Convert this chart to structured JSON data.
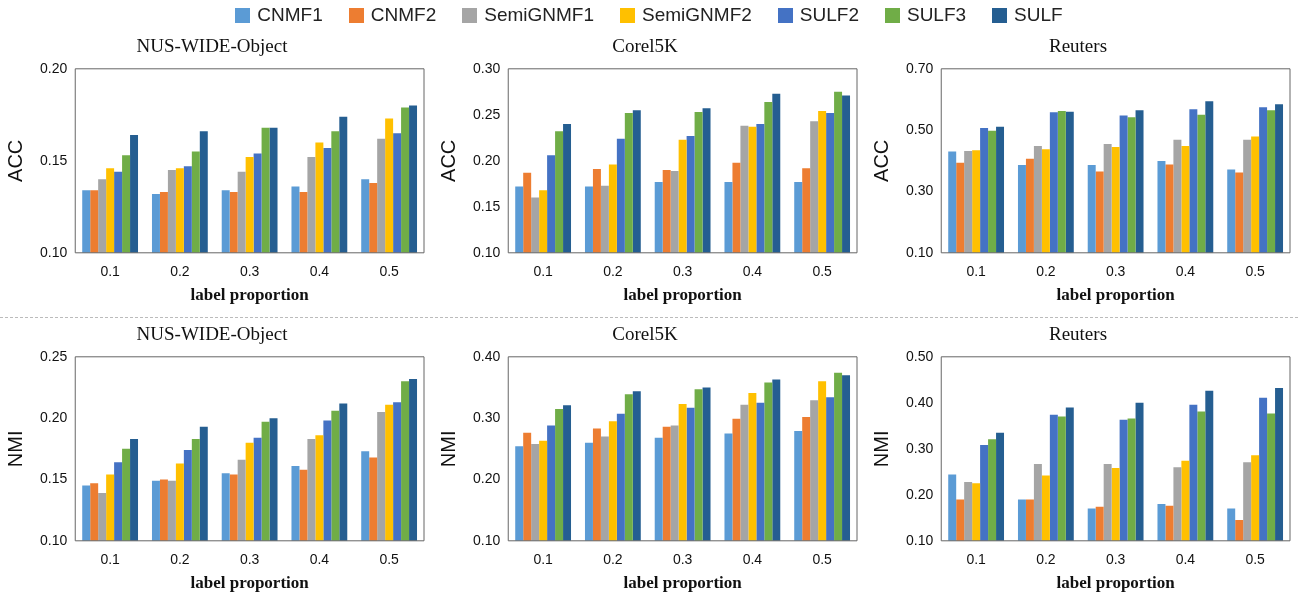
{
  "chart_data": [
    {
      "type": "bar",
      "title": "NUS-WIDE-Object",
      "xlabel": "label proportion",
      "ylabel": "ACC",
      "legend": "top",
      "categories": [
        "0.1",
        "0.2",
        "0.3",
        "0.4",
        "0.5"
      ],
      "ylim": [
        0.1,
        0.2
      ],
      "yticks": [
        {
          "value": 0.1,
          "label": "0.10"
        },
        {
          "value": 0.15,
          "label": "0.15"
        },
        {
          "value": 0.2,
          "label": "0.20"
        }
      ],
      "series": [
        {
          "name": "CNMF1",
          "color": "#5b9bd5",
          "values": [
            0.134,
            0.132,
            0.134,
            0.136,
            0.14
          ]
        },
        {
          "name": "CNMF2",
          "color": "#ed7d31",
          "values": [
            0.134,
            0.133,
            0.133,
            0.133,
            0.138
          ]
        },
        {
          "name": "SemiGNMF1",
          "color": "#a5a5a5",
          "values": [
            0.14,
            0.145,
            0.144,
            0.152,
            0.162
          ]
        },
        {
          "name": "SemiGNMF2",
          "color": "#ffc000",
          "values": [
            0.146,
            0.146,
            0.152,
            0.16,
            0.173
          ]
        },
        {
          "name": "SULF2",
          "color": "#4472c4",
          "values": [
            0.144,
            0.147,
            0.154,
            0.157,
            0.165
          ]
        },
        {
          "name": "SULF3",
          "color": "#70ad47",
          "values": [
            0.153,
            0.155,
            0.168,
            0.166,
            0.179
          ]
        },
        {
          "name": "SULF",
          "color": "#255e91",
          "values": [
            0.164,
            0.166,
            0.168,
            0.174,
            0.18
          ]
        }
      ]
    },
    {
      "type": "bar",
      "title": "Corel5K",
      "xlabel": "label proportion",
      "ylabel": "ACC",
      "categories": [
        "0.1",
        "0.2",
        "0.3",
        "0.4",
        "0.5"
      ],
      "ylim": [
        0.1,
        0.3
      ],
      "yticks": [
        {
          "value": 0.1,
          "label": "0.10"
        },
        {
          "value": 0.15,
          "label": "0.15"
        },
        {
          "value": 0.2,
          "label": "0.20"
        },
        {
          "value": 0.25,
          "label": "0.25"
        },
        {
          "value": 0.3,
          "label": "0.30"
        }
      ],
      "series": [
        {
          "color": "#5b9bd5",
          "values": [
            0.172,
            0.172,
            0.177,
            0.177,
            0.177
          ]
        },
        {
          "color": "#ed7d31",
          "values": [
            0.187,
            0.191,
            0.19,
            0.198,
            0.192
          ]
        },
        {
          "color": "#a5a5a5",
          "values": [
            0.16,
            0.173,
            0.189,
            0.238,
            0.243
          ]
        },
        {
          "color": "#ffc000",
          "values": [
            0.168,
            0.196,
            0.223,
            0.237,
            0.254
          ]
        },
        {
          "color": "#4472c4",
          "values": [
            0.206,
            0.224,
            0.227,
            0.24,
            0.252
          ]
        },
        {
          "color": "#70ad47",
          "values": [
            0.232,
            0.252,
            0.253,
            0.264,
            0.275
          ]
        },
        {
          "color": "#255e91",
          "values": [
            0.24,
            0.255,
            0.257,
            0.273,
            0.271
          ]
        }
      ]
    },
    {
      "type": "bar",
      "title": "Reuters",
      "xlabel": "label proportion",
      "ylabel": "ACC",
      "categories": [
        "0.1",
        "0.2",
        "0.3",
        "0.4",
        "0.5"
      ],
      "ylim": [
        0.1,
        0.7
      ],
      "yticks": [
        {
          "value": 0.1,
          "label": "0.10"
        },
        {
          "value": 0.3,
          "label": "0.30"
        },
        {
          "value": 0.5,
          "label": "0.50"
        },
        {
          "value": 0.7,
          "label": "0.70"
        }
      ],
      "series": [
        {
          "color": "#5b9bd5",
          "values": [
            0.43,
            0.386,
            0.386,
            0.399,
            0.372
          ]
        },
        {
          "color": "#ed7d31",
          "values": [
            0.394,
            0.407,
            0.365,
            0.388,
            0.362
          ]
        },
        {
          "color": "#a5a5a5",
          "values": [
            0.432,
            0.448,
            0.455,
            0.469,
            0.469
          ]
        },
        {
          "color": "#ffc000",
          "values": [
            0.434,
            0.438,
            0.445,
            0.448,
            0.479
          ]
        },
        {
          "color": "#4472c4",
          "values": [
            0.507,
            0.558,
            0.548,
            0.568,
            0.575
          ]
        },
        {
          "color": "#70ad47",
          "values": [
            0.498,
            0.562,
            0.542,
            0.55,
            0.565
          ]
        },
        {
          "color": "#255e91",
          "values": [
            0.511,
            0.56,
            0.565,
            0.594,
            0.584
          ]
        }
      ]
    },
    {
      "type": "bar",
      "title": "NUS-WIDE-Object",
      "xlabel": "label proportion",
      "ylabel": "NMI",
      "categories": [
        "0.1",
        "0.2",
        "0.3",
        "0.4",
        "0.5"
      ],
      "ylim": [
        0.1,
        0.25
      ],
      "yticks": [
        {
          "value": 0.1,
          "label": "0.10"
        },
        {
          "value": 0.15,
          "label": "0.15"
        },
        {
          "value": 0.2,
          "label": "0.20"
        },
        {
          "value": 0.25,
          "label": "0.25"
        }
      ],
      "series": [
        {
          "color": "#5b9bd5",
          "values": [
            0.145,
            0.149,
            0.155,
            0.161,
            0.173
          ]
        },
        {
          "color": "#ed7d31",
          "values": [
            0.147,
            0.15,
            0.154,
            0.158,
            0.168
          ]
        },
        {
          "color": "#a5a5a5",
          "values": [
            0.139,
            0.149,
            0.166,
            0.183,
            0.205
          ]
        },
        {
          "color": "#ffc000",
          "values": [
            0.154,
            0.163,
            0.18,
            0.186,
            0.211
          ]
        },
        {
          "color": "#4472c4",
          "values": [
            0.164,
            0.174,
            0.184,
            0.198,
            0.213
          ]
        },
        {
          "color": "#70ad47",
          "values": [
            0.175,
            0.183,
            0.197,
            0.206,
            0.23
          ]
        },
        {
          "color": "#255e91",
          "values": [
            0.183,
            0.193,
            0.2,
            0.212,
            0.232
          ]
        }
      ]
    },
    {
      "type": "bar",
      "title": "Corel5K",
      "xlabel": "label proportion",
      "ylabel": "NMI",
      "categories": [
        "0.1",
        "0.2",
        "0.3",
        "0.4",
        "0.5"
      ],
      "ylim": [
        0.1,
        0.4
      ],
      "yticks": [
        {
          "value": 0.1,
          "label": "0.10"
        },
        {
          "value": 0.2,
          "label": "0.20"
        },
        {
          "value": 0.3,
          "label": "0.30"
        },
        {
          "value": 0.4,
          "label": "0.40"
        }
      ],
      "series": [
        {
          "color": "#5b9bd5",
          "values": [
            0.254,
            0.26,
            0.268,
            0.275,
            0.279
          ]
        },
        {
          "color": "#ed7d31",
          "values": [
            0.276,
            0.283,
            0.286,
            0.299,
            0.302
          ]
        },
        {
          "color": "#a5a5a5",
          "values": [
            0.258,
            0.27,
            0.288,
            0.322,
            0.329
          ]
        },
        {
          "color": "#ffc000",
          "values": [
            0.263,
            0.295,
            0.323,
            0.341,
            0.36
          ]
        },
        {
          "color": "#4472c4",
          "values": [
            0.288,
            0.307,
            0.317,
            0.325,
            0.334
          ]
        },
        {
          "color": "#70ad47",
          "values": [
            0.315,
            0.339,
            0.347,
            0.358,
            0.374
          ]
        },
        {
          "color": "#255e91",
          "values": [
            0.321,
            0.344,
            0.35,
            0.363,
            0.37
          ]
        }
      ]
    },
    {
      "type": "bar",
      "title": "Reuters",
      "xlabel": "label proportion",
      "ylabel": "NMI",
      "categories": [
        "0.1",
        "0.2",
        "0.3",
        "0.4",
        "0.5"
      ],
      "ylim": [
        0.1,
        0.5
      ],
      "yticks": [
        {
          "value": 0.1,
          "label": "0.10"
        },
        {
          "value": 0.2,
          "label": "0.20"
        },
        {
          "value": 0.3,
          "label": "0.30"
        },
        {
          "value": 0.4,
          "label": "0.40"
        },
        {
          "value": 0.5,
          "label": "0.50"
        }
      ],
      "series": [
        {
          "color": "#5b9bd5",
          "values": [
            0.244,
            0.19,
            0.17,
            0.18,
            0.17
          ]
        },
        {
          "color": "#ed7d31",
          "values": [
            0.19,
            0.19,
            0.174,
            0.176,
            0.145
          ]
        },
        {
          "color": "#a5a5a5",
          "values": [
            0.228,
            0.267,
            0.267,
            0.26,
            0.271
          ]
        },
        {
          "color": "#ffc000",
          "values": [
            0.225,
            0.242,
            0.258,
            0.274,
            0.286
          ]
        },
        {
          "color": "#4472c4",
          "values": [
            0.308,
            0.374,
            0.363,
            0.396,
            0.411
          ]
        },
        {
          "color": "#70ad47",
          "values": [
            0.321,
            0.37,
            0.366,
            0.381,
            0.377
          ]
        },
        {
          "color": "#255e91",
          "values": [
            0.335,
            0.39,
            0.4,
            0.426,
            0.432
          ]
        }
      ]
    }
  ]
}
